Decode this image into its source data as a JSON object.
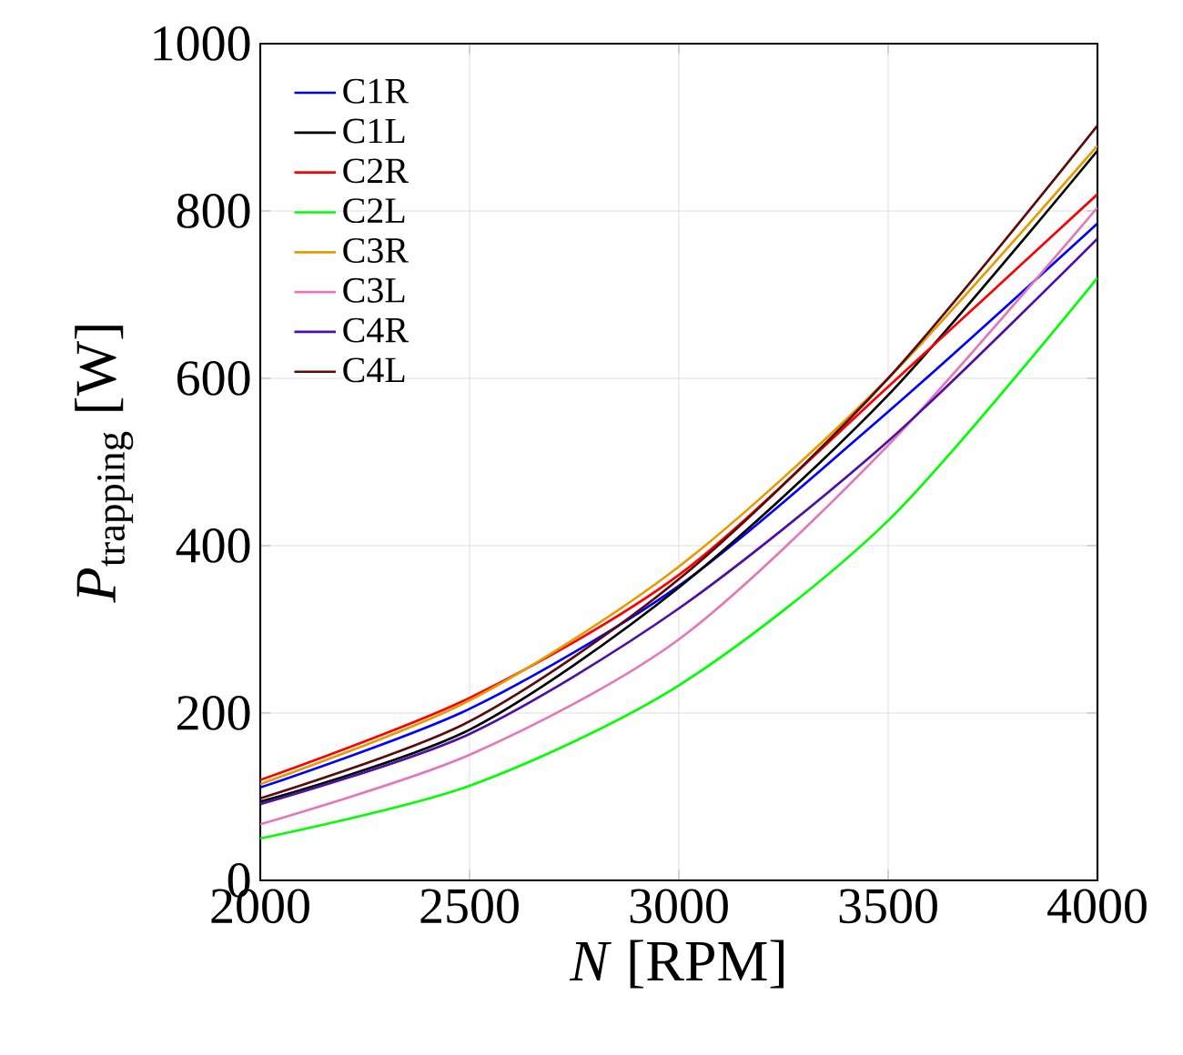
{
  "chart_data": {
    "type": "line",
    "xlabel": "*N* [RPM]",
    "ylabel": "*P*$_{trapping}$ [W]",
    "x": [
      2000,
      2500,
      3000,
      3500,
      4000
    ],
    "series": [
      {
        "name": "C1R",
        "color": "#0000ff",
        "values": [
          111,
          205,
          352,
          560,
          785
        ]
      },
      {
        "name": "C1L",
        "color": "#000000",
        "values": [
          94,
          180,
          350,
          580,
          872
        ]
      },
      {
        "name": "C2R",
        "color": "#ff0000",
        "values": [
          120,
          218,
          365,
          590,
          820
        ]
      },
      {
        "name": "C2L",
        "color": "#00ff00",
        "values": [
          50,
          113,
          233,
          430,
          720
        ]
      },
      {
        "name": "C3R",
        "color": "#e69b00",
        "values": [
          115,
          215,
          375,
          600,
          878
        ]
      },
      {
        "name": "C3L",
        "color": "#e377b8",
        "values": [
          67,
          150,
          288,
          520,
          804
        ]
      },
      {
        "name": "C4R",
        "color": "#4c0fa8",
        "values": [
          91,
          175,
          325,
          525,
          767
        ]
      },
      {
        "name": "C4L",
        "color": "#5c0a0a",
        "values": [
          98,
          190,
          360,
          600,
          902
        ]
      }
    ],
    "xlim": [
      2000,
      4000
    ],
    "ylim": [
      0,
      1000
    ],
    "xticks": [
      2000,
      2500,
      3000,
      3500,
      4000
    ],
    "yticks": [
      0,
      200,
      400,
      600,
      800,
      1000
    ],
    "grid": true,
    "legend": "top left",
    "marker": "none",
    "line_style": "solid"
  }
}
